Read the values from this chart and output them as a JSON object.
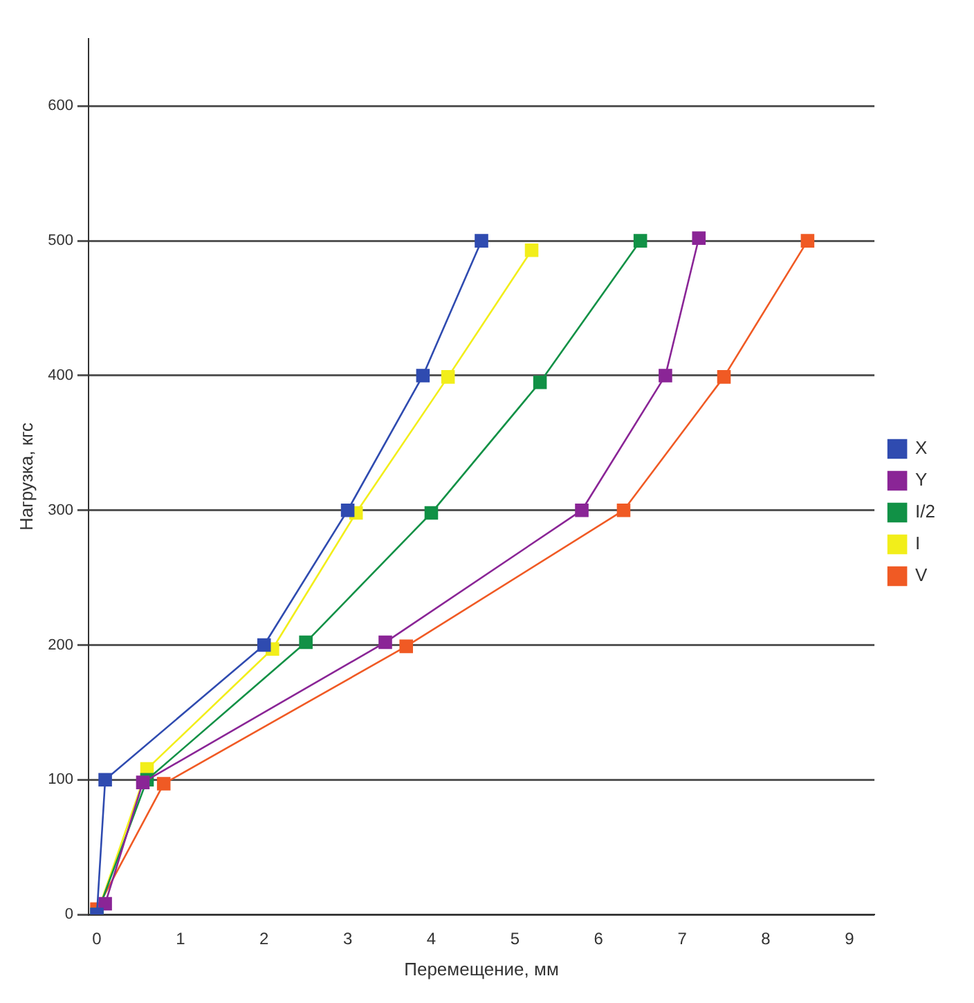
{
  "chart_data": {
    "type": "line",
    "xlabel": "Перемещение, мм",
    "ylabel": "Нагрузка, кгс",
    "xlim": [
      -0.1,
      9.3
    ],
    "xticks": [
      0,
      1,
      2,
      3,
      4,
      5,
      6,
      7,
      8,
      9
    ],
    "ylim": [
      0,
      650
    ],
    "yticks": [
      0,
      100,
      200,
      300,
      400,
      500,
      600
    ],
    "grid": "y",
    "legend": "right",
    "marker": "square",
    "line_style": "solid",
    "series": [
      {
        "name": "X",
        "color": "#2f4bb0",
        "x": [
          0,
          0.1,
          2.0,
          3.0,
          3.9,
          4.6
        ],
        "values": [
          0,
          100,
          200,
          300,
          400,
          500
        ]
      },
      {
        "name": "Y",
        "color": "#8a2596",
        "x": [
          0.1,
          0.55,
          3.45,
          5.8,
          6.8,
          7.2
        ],
        "values": [
          8,
          98,
          202,
          300,
          400,
          502
        ]
      },
      {
        "name": "I/2",
        "color": "#119146",
        "x": [
          0,
          0.6,
          2.5,
          4.0,
          5.3,
          6.5
        ],
        "values": [
          0,
          100,
          202,
          298,
          395,
          500
        ]
      },
      {
        "name": "I",
        "color": "#f2ee1a",
        "x": [
          0,
          0.6,
          2.1,
          3.1,
          4.2,
          5.2
        ],
        "values": [
          0,
          108,
          197,
          298,
          399,
          493
        ]
      },
      {
        "name": "V",
        "color": "#f05a24",
        "x": [
          0,
          0.8,
          3.7,
          6.3,
          7.5,
          8.5
        ],
        "values": [
          4,
          97,
          199,
          300,
          399,
          500
        ]
      }
    ]
  }
}
